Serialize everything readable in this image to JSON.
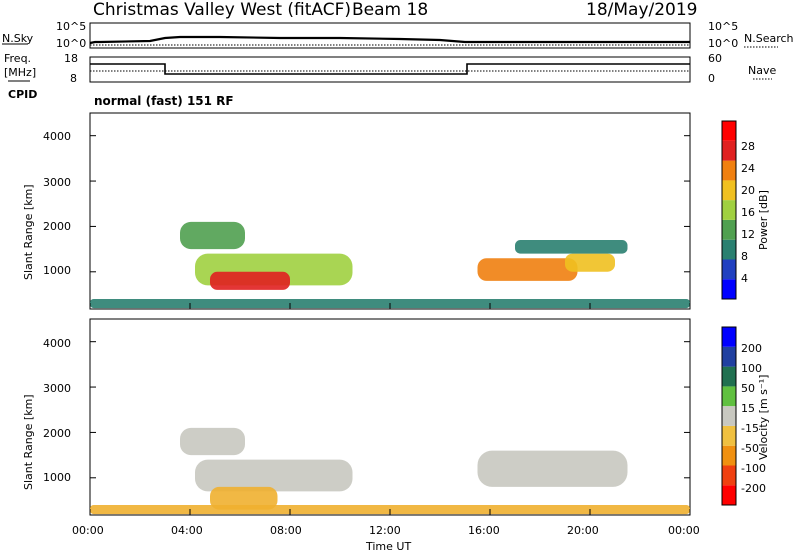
{
  "header": {
    "station": "Christmas Valley West (fitACF)",
    "beam": "Beam 18",
    "date": "18/May/2019"
  },
  "mode_text": "normal (fast) 151 RF",
  "left_labels": {
    "nsky": "N.Sky",
    "freq_line1": "Freq.",
    "freq_line2": "[MHz]",
    "cpid": "CPID"
  },
  "right_labels": {
    "nsearch": "N.Search",
    "nave": "Nave"
  },
  "noise_panel": {
    "left_ticks": [
      "10^5",
      "10^0"
    ],
    "right_ticks": [
      "10^5",
      "10^0"
    ]
  },
  "freq_panel": {
    "left_ticks": [
      "18",
      "8"
    ],
    "right_ticks": [
      "60",
      "0"
    ]
  },
  "chart_data": [
    {
      "type": "heatmap",
      "name": "power",
      "ylabel": "Slant Range [km]",
      "ylim": [
        180,
        4500
      ],
      "yticks": [
        "1000",
        "2000",
        "3000",
        "4000"
      ],
      "xlim": [
        0,
        24
      ],
      "colorbar": {
        "label": "Power [dB]",
        "ticks": [
          "28",
          "24",
          "20",
          "16",
          "12",
          "8",
          "4"
        ],
        "colors": [
          "#0000ff",
          "#2040c0",
          "#2a8070",
          "#50a050",
          "#a0d040",
          "#f0c020",
          "#f08010",
          "#e02020",
          "#ff0000"
        ]
      },
      "regions": [
        {
          "t0": 3.6,
          "t1": 6.2,
          "r0": 1500,
          "r1": 2100,
          "level": 12
        },
        {
          "t0": 4.2,
          "t1": 10.5,
          "r0": 700,
          "r1": 1400,
          "level": 16
        },
        {
          "t0": 4.8,
          "t1": 8.0,
          "r0": 600,
          "r1": 1000,
          "level": 26
        },
        {
          "t0": 15.5,
          "t1": 19.5,
          "r0": 800,
          "r1": 1300,
          "level": 24
        },
        {
          "t0": 19.0,
          "t1": 21.0,
          "r0": 1000,
          "r1": 1400,
          "level": 20
        },
        {
          "t0": 17.0,
          "t1": 21.5,
          "r0": 1400,
          "r1": 1700,
          "level": 10
        },
        {
          "t0": 0.0,
          "t1": 24.0,
          "r0": 200,
          "r1": 400,
          "level": 8
        }
      ]
    },
    {
      "type": "heatmap",
      "name": "velocity",
      "ylabel": "Slant Range [km]",
      "ylim": [
        180,
        4500
      ],
      "yticks": [
        "1000",
        "2000",
        "3000",
        "4000"
      ],
      "xlim": [
        0,
        24
      ],
      "xticks": [
        "00:00",
        "04:00",
        "08:00",
        "12:00",
        "16:00",
        "20:00",
        "00:00"
      ],
      "xlabel": "Time UT",
      "colorbar": {
        "label": "Velocity [m s⁻¹]",
        "ticks": [
          "200",
          "100",
          "50",
          "15",
          "-15",
          "-50",
          "-100",
          "-200"
        ],
        "colors": [
          "#ff0000",
          "#f04010",
          "#f09010",
          "#f0c040",
          "#c8c8c0",
          "#60c040",
          "#207050",
          "#2040a0",
          "#0000ff"
        ]
      },
      "regions": [
        {
          "t0": 3.6,
          "t1": 6.2,
          "r0": 1500,
          "r1": 2100,
          "level": 0
        },
        {
          "t0": 4.2,
          "t1": 10.5,
          "r0": 700,
          "r1": 1400,
          "level": 0
        },
        {
          "t0": 15.5,
          "t1": 21.5,
          "r0": 800,
          "r1": 1600,
          "level": 0
        },
        {
          "t0": 4.8,
          "t1": 7.5,
          "r0": 300,
          "r1": 800,
          "level": -30
        },
        {
          "t0": 0.0,
          "t1": 24.0,
          "r0": 200,
          "r1": 400,
          "level": -40
        }
      ]
    }
  ]
}
